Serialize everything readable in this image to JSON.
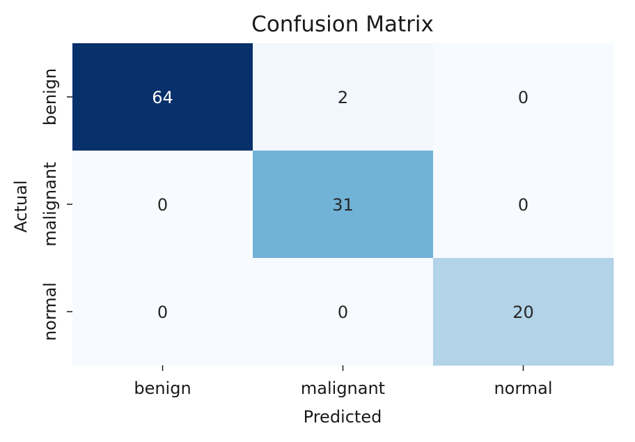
{
  "chart_data": {
    "type": "heatmap",
    "title": "Confusion Matrix",
    "xlabel": "Predicted",
    "ylabel": "Actual",
    "x_categories": [
      "benign",
      "malignant",
      "normal"
    ],
    "y_categories": [
      "benign",
      "malignant",
      "normal"
    ],
    "values": [
      [
        64,
        2,
        0
      ],
      [
        0,
        31,
        0
      ],
      [
        0,
        0,
        20
      ]
    ],
    "colormap": "Blues",
    "colorbar": false,
    "grid": false
  }
}
